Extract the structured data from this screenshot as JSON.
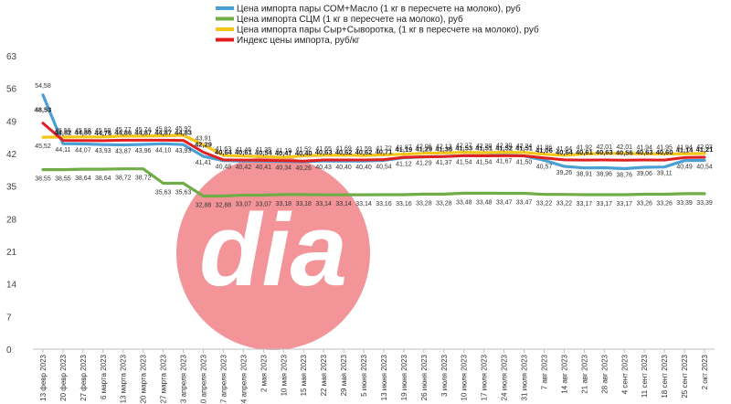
{
  "chart_data": {
    "type": "line",
    "title": "",
    "xlabel": "",
    "ylabel": "",
    "ylim": [
      0,
      63
    ],
    "yticks": [
      0,
      7,
      14,
      21,
      28,
      35,
      42,
      49,
      56,
      63
    ],
    "grid": false,
    "legend_position": "top-left",
    "categories": [
      "13 февр 2023",
      "20 февр 2023",
      "27 февр 2023",
      "6 марта 2023",
      "13 марта 2023",
      "20 марта 2023",
      "27 марта 2023",
      "3 апреля 2023",
      "10 апреля 2023",
      "17 апреля 2023",
      "24 апреля 2023",
      "2 мая 2023",
      "10 мая 2023",
      "15 мая 2023",
      "22 мая 2023",
      "29 мая 2023",
      "5 июня 2023",
      "13 июня 2023",
      "19 июня 2023",
      "26 июня 2023",
      "3 июля 2023",
      "10 июля 2023",
      "17 июля 2023",
      "24 июля 2023",
      "31 июля 2023",
      "7 авг 2023",
      "14 авг 2023",
      "21 авг 2023",
      "28 авг 2023",
      "4 сент 2023",
      "11 сент 2023",
      "18 сент 2023",
      "25 сент 2023",
      "2 окт 2023"
    ],
    "series": [
      {
        "name": "Цена импорта пары СОМ+Масло (1 кг в пересчете на молоко), руб",
        "color": "#4a9fd4",
        "values": [
          54.58,
          44.11,
          44.07,
          43.93,
          43.87,
          43.96,
          44.1,
          43.93,
          41.41,
          40.48,
          40.42,
          40.41,
          40.34,
          40.26,
          40.43,
          40.4,
          40.4,
          40.54,
          41.12,
          41.29,
          41.37,
          41.54,
          41.54,
          41.67,
          41.5,
          40.57,
          39.26,
          38.91,
          38.96,
          38.76,
          39.06,
          39.11,
          40.49,
          40.54
        ]
      },
      {
        "name": "Цена импорта СЦМ (1 кг в пересчете на молоко), руб",
        "color": "#70ad47",
        "values": [
          38.55,
          38.55,
          38.64,
          38.64,
          38.72,
          38.72,
          35.63,
          35.63,
          32.88,
          32.88,
          33.07,
          33.07,
          33.18,
          33.18,
          33.14,
          33.14,
          33.14,
          33.16,
          33.16,
          33.28,
          33.28,
          33.48,
          33.48,
          33.47,
          33.47,
          33.22,
          33.22,
          33.17,
          33.17,
          33.17,
          33.26,
          33.26,
          33.39,
          33.39
        ]
      },
      {
        "name": "Цена импорта пары Сыр+Сыворотка, (1 кг в пересчете на молоко), руб",
        "color": "#f5c518",
        "values": [
          45.52,
          45.56,
          45.58,
          45.58,
          45.77,
          45.74,
          45.82,
          45.92,
          43.91,
          41.63,
          41.46,
          41.38,
          41.19,
          41.52,
          41.65,
          41.69,
          41.59,
          41.72,
          41.87,
          42.06,
          42.13,
          42.27,
          42.2,
          42.3,
          42.24,
          41.86,
          41.64,
          41.92,
          42.01,
          42.01,
          41.94,
          41.95,
          41.94,
          42.03
        ]
      },
      {
        "name": "Индекс цены импорта, руб/кг",
        "color": "#e02020",
        "values": [
          48.53,
          44.82,
          44.8,
          44.76,
          44.86,
          44.87,
          44.87,
          44.83,
          42.29,
          40.64,
          40.61,
          40.54,
          40.47,
          40.4,
          40.63,
          40.62,
          40.62,
          40.71,
          41.19,
          41.29,
          41.36,
          41.53,
          41.51,
          41.52,
          41.51,
          41.06,
          40.64,
          40.61,
          40.63,
          40.56,
          40.63,
          40.6,
          41.14,
          41.21
        ]
      }
    ],
    "x_tick_labels": [
      "13 февр 2023",
      "20 февр 2023",
      "27 февр 2023",
      "6 марта 2023",
      "13 марта 2023",
      "20 марта 2023",
      "27 марта 2023",
      "3 апреля 2023",
      "10 апреля 2023",
      "17 апреля 2023",
      "24 апреля 2023",
      "2 мая 2023",
      "10 мая 2023",
      "15 мая 2023",
      "22 мая 2023",
      "29 мая 2023",
      "5 июня 2023",
      "13 июня 2023",
      "19 июня 2023",
      "26 июня 2023",
      "3 июля 2023",
      "10 июля 2023",
      "17 июля 2023",
      "24 июля 2023",
      "31 июля 2023",
      "7 авг 2023",
      "14 авг 2023",
      "21 авг 2023",
      "28 авг 2023",
      "4 сент 2023",
      "11 сент 2023",
      "18 сент 2023",
      "25 сент 2023",
      "2 окт 2023"
    ]
  },
  "watermark": {
    "text": "dia",
    "color": "#f08a8f"
  }
}
